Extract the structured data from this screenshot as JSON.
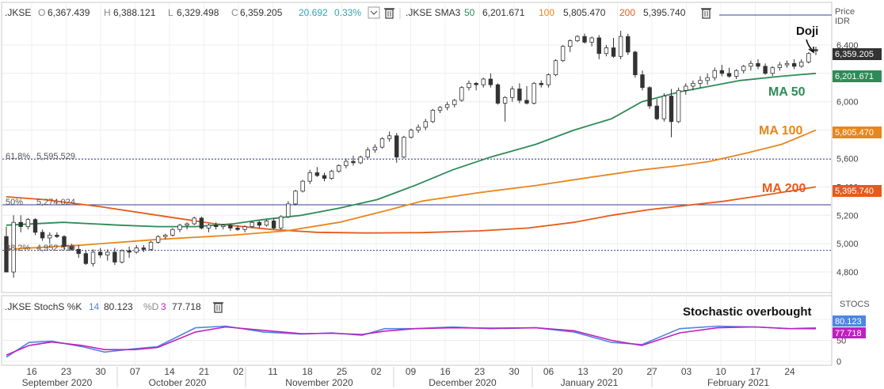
{
  "header": {
    "main_symbol": ".JKSE",
    "o_label": "O",
    "o_value": "6,367.439",
    "h_label": "H",
    "h_value": "6,388.121",
    "l_label": "L",
    "l_value": "6,329.498",
    "c_label": "C",
    "c_value": "6,359.205",
    "change": "20.692",
    "change_pct": "0.33%",
    "sma_label": ".JKSE SMA3",
    "sma_p1": "50",
    "sma_v1": "6,201.671",
    "sma_p2": "100",
    "sma_v2": "5,805.470",
    "sma_p3": "200",
    "sma_v3": "5,395.740",
    "price_axis_title": "Price",
    "price_axis_unit": "IDR"
  },
  "stoch_header": {
    "label": ".JKSE StochS %K",
    "k_period": "14",
    "k_value": "80.123",
    "d_label": "%D",
    "d_period": "3",
    "d_value": "77.718",
    "axis_title": "STOCS"
  },
  "annotations": {
    "doji": "Doji",
    "ma50": "MA 50",
    "ma100": "MA 100",
    "ma200": "MA 200",
    "stoch": "Stochastic overbought"
  },
  "fib_labels": {
    "f618": "61.8%",
    "f618_val": "5,595.529",
    "f50": "50%",
    "f50_val": "5,274.024",
    "f382": "38.2%",
    "f382_val": "4,952.519"
  },
  "price_tags": {
    "close": "6,359.205",
    "ma50": "6,201.671",
    "ma100": "5,805.470",
    "ma200": "5,395.740"
  },
  "stoch_tags": {
    "k": "80.123",
    "d": "77.718"
  },
  "colors": {
    "ma50": "#2e8b57",
    "ma100": "#e8861c",
    "ma200": "#e85a1c",
    "stoch_k": "#4f86e0",
    "stoch_d": "#c020c0",
    "change": "#2aa8b0",
    "fib": "#3a3f9a"
  },
  "chart_data": [
    {
      "type": "candlestick",
      "title": ".JKSE",
      "ylabel": "Price IDR",
      "ylim": [
        4700,
        6550
      ],
      "yticks": [
        4800,
        5000,
        5200,
        5400,
        5600,
        5800,
        6000,
        6200,
        6400
      ],
      "ytick_labels": [
        "4,800",
        "5,000",
        "5,200",
        "5,400",
        "5,600",
        "5,800",
        "6,000",
        "6,200",
        "6,400"
      ],
      "x_day_ticks": [
        "16",
        "23",
        "30",
        "07",
        "14",
        "21",
        "02",
        "11",
        "18",
        "25",
        "02",
        "09",
        "16",
        "23",
        "30",
        "06",
        "13",
        "20",
        "27",
        "03",
        "10",
        "17",
        "24"
      ],
      "x_month_labels": [
        "September 2020",
        "October 2020",
        "November 2020",
        "December 2020",
        "January 2021",
        "February 2021"
      ],
      "fib_levels": [
        5595.529,
        5274.024,
        4952.519
      ],
      "candles": [
        [
          5050,
          5120,
          4800,
          4800
        ],
        [
          4800,
          5200,
          4760,
          5150
        ],
        [
          5150,
          5200,
          5080,
          5120
        ],
        [
          5120,
          5180,
          5100,
          5170
        ],
        [
          5170,
          5180,
          5060,
          5080
        ],
        [
          5080,
          5100,
          5020,
          5040
        ],
        [
          5040,
          5080,
          5000,
          5060
        ],
        [
          5060,
          5080,
          5040,
          5050
        ],
        [
          5050,
          5060,
          4960,
          4980
        ],
        [
          4980,
          5000,
          4950,
          4960
        ],
        [
          4960,
          4990,
          4900,
          4930
        ],
        [
          4930,
          4950,
          4850,
          4860
        ],
        [
          4860,
          4960,
          4840,
          4940
        ],
        [
          4940,
          4970,
          4900,
          4920
        ],
        [
          4920,
          4960,
          4880,
          4940
        ],
        [
          4940,
          4970,
          4850,
          4870
        ],
        [
          4870,
          4960,
          4860,
          4950
        ],
        [
          4950,
          4980,
          4900,
          4940
        ],
        [
          4940,
          4990,
          4930,
          4970
        ],
        [
          4970,
          4990,
          4940,
          4960
        ],
        [
          4960,
          5020,
          4950,
          5010
        ],
        [
          5010,
          5060,
          5000,
          5050
        ],
        [
          5050,
          5070,
          5030,
          5060
        ],
        [
          5060,
          5110,
          5050,
          5100
        ],
        [
          5100,
          5140,
          5080,
          5130
        ],
        [
          5130,
          5150,
          5100,
          5140
        ],
        [
          5140,
          5190,
          5130,
          5180
        ],
        [
          5180,
          5190,
          5100,
          5110
        ],
        [
          5110,
          5140,
          5080,
          5130
        ],
        [
          5130,
          5150,
          5100,
          5120
        ],
        [
          5120,
          5140,
          5100,
          5130
        ],
        [
          5130,
          5140,
          5090,
          5110
        ],
        [
          5110,
          5130,
          5090,
          5100
        ],
        [
          5100,
          5130,
          5080,
          5120
        ],
        [
          5120,
          5160,
          5110,
          5150
        ],
        [
          5150,
          5160,
          5110,
          5130
        ],
        [
          5130,
          5170,
          5120,
          5160
        ],
        [
          5160,
          5180,
          5100,
          5110
        ],
        [
          5110,
          5200,
          5100,
          5190
        ],
        [
          5190,
          5300,
          5180,
          5280
        ],
        [
          5280,
          5380,
          5270,
          5370
        ],
        [
          5370,
          5450,
          5360,
          5440
        ],
        [
          5440,
          5520,
          5420,
          5500
        ],
        [
          5500,
          5540,
          5470,
          5480
        ],
        [
          5480,
          5500,
          5440,
          5460
        ],
        [
          5460,
          5520,
          5450,
          5510
        ],
        [
          5510,
          5560,
          5500,
          5550
        ],
        [
          5550,
          5600,
          5530,
          5580
        ],
        [
          5580,
          5620,
          5550,
          5570
        ],
        [
          5570,
          5620,
          5560,
          5610
        ],
        [
          5610,
          5680,
          5600,
          5660
        ],
        [
          5660,
          5700,
          5640,
          5680
        ],
        [
          5680,
          5750,
          5670,
          5740
        ],
        [
          5740,
          5790,
          5720,
          5760
        ],
        [
          5760,
          5780,
          5570,
          5610
        ],
        [
          5610,
          5760,
          5600,
          5750
        ],
        [
          5750,
          5810,
          5740,
          5800
        ],
        [
          5800,
          5840,
          5780,
          5820
        ],
        [
          5820,
          5880,
          5800,
          5860
        ],
        [
          5860,
          5950,
          5850,
          5940
        ],
        [
          5940,
          5970,
          5920,
          5960
        ],
        [
          5960,
          6000,
          5940,
          5980
        ],
        [
          5980,
          6020,
          5960,
          6010
        ],
        [
          6010,
          6110,
          6000,
          6100
        ],
        [
          6100,
          6150,
          6080,
          6130
        ],
        [
          6130,
          6140,
          6080,
          6120
        ],
        [
          6120,
          6170,
          6100,
          6160
        ],
        [
          6160,
          6200,
          6100,
          6120
        ],
        [
          6120,
          6130,
          5980,
          5990
        ],
        [
          5990,
          6040,
          5860,
          6030
        ],
        [
          6030,
          6110,
          6000,
          6090
        ],
        [
          6090,
          6130,
          5990,
          6010
        ],
        [
          6010,
          6110,
          5980,
          5990
        ],
        [
          5990,
          6140,
          5980,
          6130
        ],
        [
          6130,
          6150,
          6100,
          6120
        ],
        [
          6120,
          6200,
          6100,
          6190
        ],
        [
          6190,
          6300,
          6180,
          6290
        ],
        [
          6290,
          6400,
          6280,
          6390
        ],
        [
          6390,
          6440,
          6350,
          6430
        ],
        [
          6430,
          6470,
          6420,
          6460
        ],
        [
          6460,
          6480,
          6410,
          6420
        ],
        [
          6420,
          6460,
          6390,
          6450
        ],
        [
          6450,
          6470,
          6300,
          6340
        ],
        [
          6340,
          6400,
          6320,
          6380
        ],
        [
          6380,
          6450,
          6310,
          6320
        ],
        [
          6320,
          6500,
          6300,
          6460
        ],
        [
          6460,
          6480,
          6330,
          6350
        ],
        [
          6350,
          6360,
          6170,
          6190
        ],
        [
          6190,
          6220,
          6080,
          6100
        ],
        [
          6100,
          6110,
          5950,
          5970
        ],
        [
          5970,
          6020,
          5870,
          5880
        ],
        [
          5880,
          6060,
          5860,
          6040
        ],
        [
          6040,
          6090,
          5750,
          5860
        ],
        [
          5860,
          6100,
          5850,
          6080
        ],
        [
          6080,
          6130,
          6050,
          6110
        ],
        [
          6110,
          6150,
          6080,
          6130
        ],
        [
          6130,
          6180,
          6100,
          6150
        ],
        [
          6150,
          6200,
          6120,
          6170
        ],
        [
          6170,
          6240,
          6150,
          6220
        ],
        [
          6220,
          6260,
          6180,
          6200
        ],
        [
          6200,
          6240,
          6170,
          6180
        ],
        [
          6180,
          6230,
          6160,
          6220
        ],
        [
          6220,
          6260,
          6200,
          6250
        ],
        [
          6250,
          6290,
          6220,
          6270
        ],
        [
          6270,
          6300,
          6230,
          6250
        ],
        [
          6250,
          6270,
          6190,
          6200
        ],
        [
          6200,
          6250,
          6180,
          6240
        ],
        [
          6240,
          6280,
          6220,
          6260
        ],
        [
          6260,
          6290,
          6240,
          6270
        ],
        [
          6270,
          6300,
          6230,
          6250
        ],
        [
          6250,
          6300,
          6240,
          6280
        ],
        [
          6280,
          6350,
          6270,
          6340
        ],
        [
          6367.439,
          6388.121,
          6329.498,
          6359.205
        ]
      ],
      "ma50": [
        [
          0,
          5130
        ],
        [
          15,
          5150
        ],
        [
          30,
          5130
        ],
        [
          40,
          5120
        ],
        [
          50,
          5120
        ],
        [
          60,
          5140
        ],
        [
          68,
          5170
        ],
        [
          78,
          5200
        ],
        [
          88,
          5250
        ],
        [
          98,
          5310
        ],
        [
          108,
          5410
        ],
        [
          118,
          5520
        ],
        [
          128,
          5610
        ],
        [
          140,
          5700
        ],
        [
          150,
          5800
        ],
        [
          160,
          5880
        ],
        [
          168,
          6000
        ],
        [
          178,
          6070
        ],
        [
          186,
          6110
        ],
        [
          194,
          6150
        ],
        [
          205,
          6180
        ],
        [
          214,
          6200
        ]
      ],
      "ma100": [
        [
          0,
          4960
        ],
        [
          20,
          4990
        ],
        [
          40,
          5030
        ],
        [
          60,
          5060
        ],
        [
          74,
          5090
        ],
        [
          88,
          5150
        ],
        [
          100,
          5230
        ],
        [
          110,
          5300
        ],
        [
          125,
          5360
        ],
        [
          140,
          5410
        ],
        [
          155,
          5470
        ],
        [
          168,
          5520
        ],
        [
          178,
          5550
        ],
        [
          186,
          5580
        ],
        [
          196,
          5640
        ],
        [
          205,
          5700
        ],
        [
          214,
          5800
        ]
      ],
      "ma200": [
        [
          0,
          5330
        ],
        [
          10,
          5310
        ],
        [
          25,
          5260
        ],
        [
          40,
          5200
        ],
        [
          55,
          5140
        ],
        [
          70,
          5100
        ],
        [
          82,
          5080
        ],
        [
          95,
          5075
        ],
        [
          110,
          5078
        ],
        [
          125,
          5090
        ],
        [
          138,
          5110
        ],
        [
          150,
          5150
        ],
        [
          160,
          5200
        ],
        [
          170,
          5240
        ],
        [
          180,
          5270
        ],
        [
          190,
          5300
        ],
        [
          200,
          5340
        ],
        [
          214,
          5400
        ]
      ]
    },
    {
      "type": "line",
      "title": ".JKSE StochS %K 14 %D 3",
      "ylim": [
        0,
        100
      ],
      "yticks": [
        0,
        50,
        100
      ],
      "series": [
        {
          "name": "%K",
          "values": [
            [
              0,
              10
            ],
            [
              6,
              45
            ],
            [
              12,
              48
            ],
            [
              20,
              35
            ],
            [
              26,
              22
            ],
            [
              34,
              30
            ],
            [
              40,
              35
            ],
            [
              50,
              80
            ],
            [
              58,
              84
            ],
            [
              68,
              70
            ],
            [
              78,
              65
            ],
            [
              86,
              68
            ],
            [
              94,
              62
            ],
            [
              100,
              78
            ],
            [
              108,
              78
            ],
            [
              118,
              82
            ],
            [
              128,
              78
            ],
            [
              140,
              80
            ],
            [
              150,
              70
            ],
            [
              160,
              45
            ],
            [
              168,
              40
            ],
            [
              178,
              78
            ],
            [
              188,
              84
            ],
            [
              198,
              82
            ],
            [
              207,
              78
            ],
            [
              214,
              80.123
            ]
          ]
        },
        {
          "name": "%D",
          "values": [
            [
              0,
              15
            ],
            [
              6,
              38
            ],
            [
              12,
              46
            ],
            [
              20,
              38
            ],
            [
              26,
              28
            ],
            [
              34,
              28
            ],
            [
              40,
              33
            ],
            [
              50,
              70
            ],
            [
              58,
              82
            ],
            [
              68,
              74
            ],
            [
              78,
              66
            ],
            [
              86,
              67
            ],
            [
              94,
              64
            ],
            [
              100,
              72
            ],
            [
              108,
              78
            ],
            [
              118,
              80
            ],
            [
              128,
              79
            ],
            [
              140,
              80
            ],
            [
              150,
              73
            ],
            [
              160,
              50
            ],
            [
              168,
              38
            ],
            [
              178,
              68
            ],
            [
              188,
              80
            ],
            [
              198,
              82
            ],
            [
              207,
              78
            ],
            [
              214,
              77.718
            ]
          ]
        }
      ]
    }
  ]
}
